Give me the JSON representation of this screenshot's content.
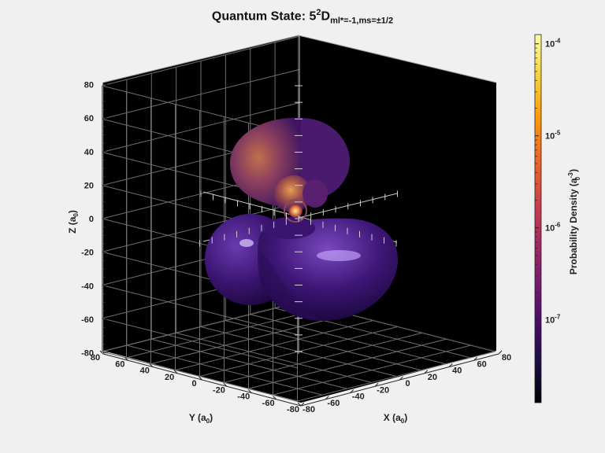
{
  "chart_data": {
    "type": "isosurface-3d",
    "title": {
      "prefix": "Quantum State: 5",
      "sup": "2",
      "letter": "D",
      "sub": "ml*=-1,ms=±1/2"
    },
    "axes": {
      "x": {
        "label_main": "X (a",
        "label_sub": "0",
        "label_close": ")",
        "ticks": [
          "-80",
          "-60",
          "-40",
          "-20",
          "0",
          "20",
          "40",
          "60",
          "80"
        ],
        "range": [
          -80,
          80
        ]
      },
      "y": {
        "label_main": "Y (a",
        "label_sub": "0",
        "label_close": ")",
        "ticks": [
          "-80",
          "-60",
          "-40",
          "-20",
          "0",
          "20",
          "40",
          "60",
          "80"
        ],
        "range": [
          -80,
          80
        ]
      },
      "z": {
        "label_main": "Z (a",
        "label_sub": "0",
        "label_close": ")",
        "ticks": [
          "-80",
          "-60",
          "-40",
          "-20",
          "0",
          "20",
          "40",
          "60",
          "80"
        ],
        "range": [
          -80,
          80
        ]
      }
    },
    "grid": true,
    "background": "#000000",
    "colorbar": {
      "label_main": "Probability Density (a",
      "label_sup": "-3",
      "label_sub": "0",
      "label_close": ")",
      "scale": "log",
      "tick_labels": [
        {
          "base": "10",
          "exp": "-4"
        },
        {
          "base": "10",
          "exp": "-5"
        },
        {
          "base": "10",
          "exp": "-6"
        },
        {
          "base": "10",
          "exp": "-7"
        }
      ],
      "tick_values": [
        -4,
        -5,
        -6,
        -7
      ],
      "range_log10": [
        -7.9,
        -3.9
      ],
      "colormap": [
        "#000004",
        "#1b0c41",
        "#4a0c6b",
        "#781c6d",
        "#a52c60",
        "#cf4446",
        "#ed6925",
        "#fb9b06",
        "#f7d13d",
        "#fcffa4"
      ]
    },
    "lobes": [
      {
        "name": "upper-outer",
        "color": "#5a2a78",
        "highlight": "#b06a4a"
      },
      {
        "name": "upper-inner",
        "color": "#7a3a5a",
        "highlight": "#c88a4a"
      },
      {
        "name": "lower-left",
        "color": "#3b1470",
        "highlight": "#8a5ac8"
      },
      {
        "name": "lower-right",
        "color": "#3b1470",
        "highlight": "#9a70d8"
      }
    ]
  }
}
